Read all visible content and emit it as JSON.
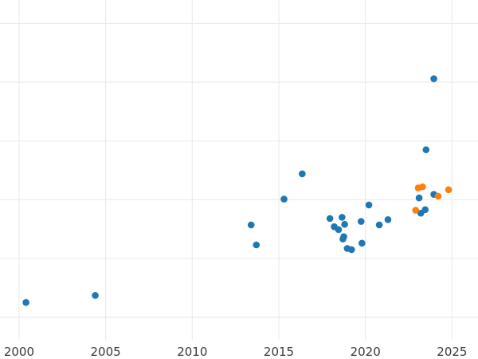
{
  "chart_data": {
    "type": "scatter",
    "title": "",
    "xlabel": "",
    "ylabel": "",
    "grid": true,
    "xlim": [
      1998.9,
      2026.5
    ],
    "ylim": [
      -0.4,
      5.4
    ],
    "x_ticks": [
      2000,
      2005,
      2010,
      2015,
      2020,
      2025
    ],
    "x_tick_labels": [
      "2000",
      "2005",
      "2010",
      "2015",
      "2020",
      "2025"
    ],
    "y_gridlines": [
      0,
      1,
      2,
      3,
      4,
      5
    ],
    "series": [
      {
        "color": "#1f77b4",
        "points": [
          {
            "x": 2000.4,
            "y": 0.25
          },
          {
            "x": 2004.4,
            "y": 0.37
          },
          {
            "x": 2013.4,
            "y": 1.57
          },
          {
            "x": 2013.7,
            "y": 1.23
          },
          {
            "x": 2015.3,
            "y": 2.01
          },
          {
            "x": 2016.35,
            "y": 2.44
          },
          {
            "x": 2017.95,
            "y": 1.68
          },
          {
            "x": 2018.2,
            "y": 1.54
          },
          {
            "x": 2018.45,
            "y": 1.49
          },
          {
            "x": 2018.65,
            "y": 1.7
          },
          {
            "x": 2018.7,
            "y": 1.33
          },
          {
            "x": 2018.75,
            "y": 1.37
          },
          {
            "x": 2018.8,
            "y": 1.58
          },
          {
            "x": 2018.95,
            "y": 1.17
          },
          {
            "x": 2019.2,
            "y": 1.15
          },
          {
            "x": 2019.75,
            "y": 1.63
          },
          {
            "x": 2019.8,
            "y": 1.26
          },
          {
            "x": 2020.2,
            "y": 1.91
          },
          {
            "x": 2020.8,
            "y": 1.57
          },
          {
            "x": 2021.3,
            "y": 1.66
          },
          {
            "x": 2023.1,
            "y": 2.03
          },
          {
            "x": 2023.2,
            "y": 1.77
          },
          {
            "x": 2023.45,
            "y": 1.83
          },
          {
            "x": 2023.5,
            "y": 2.85
          },
          {
            "x": 2023.95,
            "y": 4.06
          },
          {
            "x": 2023.95,
            "y": 2.09
          }
        ]
      },
      {
        "color": "#ff7f0e",
        "points": [
          {
            "x": 2022.9,
            "y": 1.82
          },
          {
            "x": 2023.05,
            "y": 2.2
          },
          {
            "x": 2023.3,
            "y": 2.22
          },
          {
            "x": 2024.2,
            "y": 2.06
          },
          {
            "x": 2024.8,
            "y": 2.17
          }
        ]
      }
    ]
  }
}
